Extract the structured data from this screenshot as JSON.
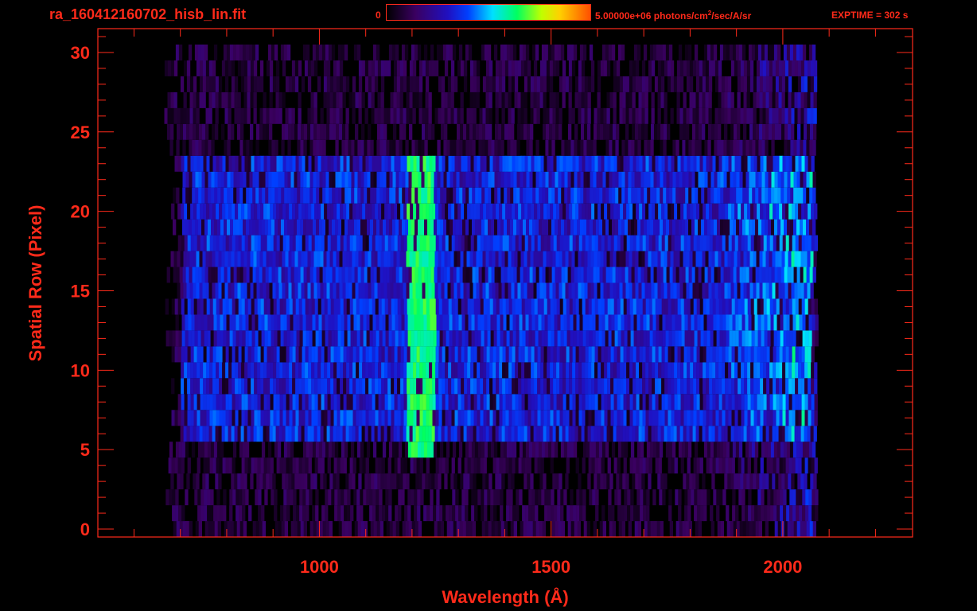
{
  "header": {
    "filename": "ra_160412160702_hisb_lin.fit",
    "colorbar_min": "0",
    "colorbar_max_prefix": "5.00000e+06 photons/cm",
    "colorbar_max_sup": "2",
    "colorbar_max_suffix": "/sec/A/sr",
    "exptime": "EXPTIME = 302 s",
    "colorbar_colors": [
      "#000000",
      "#3a0060",
      "#2010c0",
      "#0040ff",
      "#00e0ff",
      "#00ff60",
      "#c0ff00",
      "#ffd000",
      "#ff5000"
    ]
  },
  "chart_data": {
    "type": "heatmap",
    "title": "ra_160412160702_hisb_lin.fit",
    "xlabel": "Wavelength (Å)",
    "ylabel": "Spatial Row (Pixel)",
    "xlim": [
      522,
      2280
    ],
    "ylim": [
      -0.5,
      31.5
    ],
    "x_ticks": [
      1000,
      1500,
      2000
    ],
    "y_ticks": [
      0,
      5,
      10,
      15,
      20,
      25,
      30
    ],
    "color_scale": {
      "min": 0,
      "max": 5000000,
      "units": "photons/cm^2/sec/A/sr"
    },
    "grid": false,
    "features": [
      {
        "name": "Lyman-alpha emission line",
        "wavelength": 1216,
        "rows": [
          5,
          23
        ],
        "relative_intensity": 0.65
      },
      {
        "name": "aperture illuminated region",
        "wavelength_range": [
          700,
          2060
        ],
        "rows": [
          6,
          23
        ],
        "relative_intensity": 0.35
      },
      {
        "name": "detector edge",
        "wavelength_range": [
          680,
          2070
        ],
        "rows": [
          0,
          30
        ],
        "relative_intensity": 0.15
      }
    ]
  }
}
